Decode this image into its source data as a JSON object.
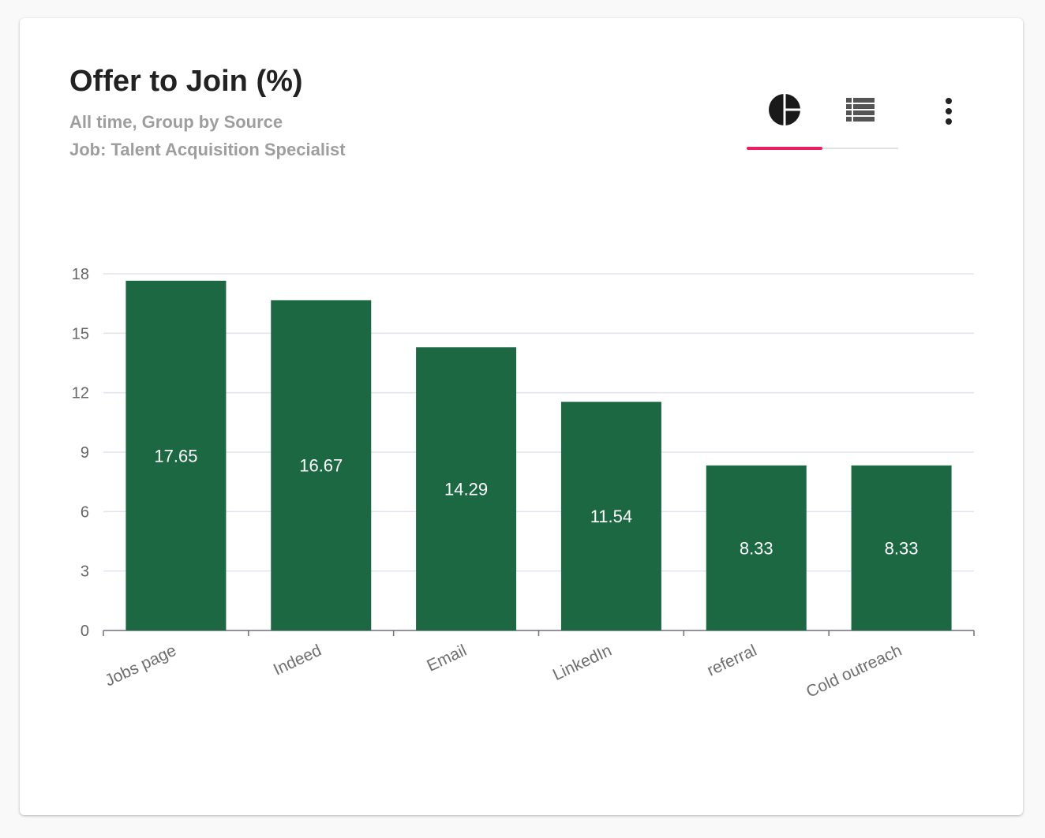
{
  "card": {
    "title": "Offer to Join (%)",
    "subtitle_line1": "All time, Group by Source",
    "subtitle_line2": "Job: Talent Acquisition Specialist"
  },
  "toolbar": {
    "tabs": [
      {
        "icon": "pie-chart-icon",
        "active": true
      },
      {
        "icon": "list-view-icon",
        "active": false
      }
    ],
    "more_icon": "more-vertical-icon",
    "accent_color": "#e91e63"
  },
  "chart_data": {
    "type": "bar",
    "title": "Offer to Join (%)",
    "categories": [
      "Jobs page",
      "Indeed",
      "Email",
      "LinkedIn",
      "referral",
      "Cold outreach"
    ],
    "values": [
      17.65,
      16.67,
      14.29,
      11.54,
      8.33,
      8.33
    ],
    "value_labels": [
      "17.65",
      "16.67",
      "14.29",
      "11.54",
      "8.33",
      "8.33"
    ],
    "ylim": [
      0,
      18
    ],
    "yticks": [
      0,
      3,
      6,
      9,
      12,
      15,
      18
    ],
    "grid": true,
    "legend": "none",
    "bar_color": "#1b6843"
  }
}
